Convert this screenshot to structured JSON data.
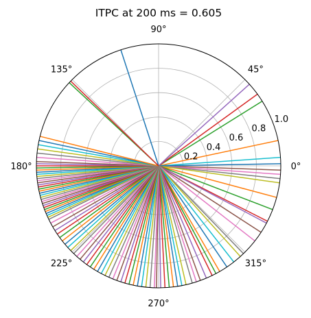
{
  "chart_data": {
    "type": "polar-line",
    "title": "ITPC at 200 ms = 0.605",
    "angle_ticks": [
      "0°",
      "45°",
      "90°",
      "135°",
      "180°",
      "225°",
      "270°",
      "315°"
    ],
    "angle_tick_degrees": [
      0,
      45,
      90,
      135,
      180,
      225,
      270,
      315
    ],
    "radial_ticks": [
      0.2,
      0.4,
      0.6,
      0.8,
      1.0
    ],
    "radial_tick_labels": [
      "0.2",
      "0.4",
      "0.6",
      "0.8",
      "1.0"
    ],
    "rlim": [
      0,
      1.0
    ],
    "grid": true,
    "legend": false,
    "colors": [
      "#1f77b4",
      "#ff7f0e",
      "#2ca02c",
      "#d62728",
      "#9467bd",
      "#8c564b",
      "#e377c2",
      "#7f7f7f",
      "#bcbd22",
      "#17becf"
    ],
    "trial_phase_angles_deg": [
      108,
      12,
      32,
      36,
      42,
      358,
      356,
      354,
      352,
      4,
      1,
      345,
      339,
      333,
      332,
      327,
      322,
      314,
      312,
      308,
      304,
      300,
      298,
      296,
      293,
      290,
      288,
      286,
      283,
      281,
      279,
      277,
      275,
      273,
      271,
      269,
      268,
      266,
      264,
      262,
      260,
      258,
      256,
      254,
      252,
      250,
      248,
      246,
      244,
      242,
      240,
      238,
      236,
      234,
      232,
      230,
      228,
      226,
      224,
      222,
      220,
      218,
      216,
      214,
      212,
      210,
      208,
      206,
      205,
      204,
      203,
      202,
      201,
      200,
      199,
      198,
      197,
      196,
      195,
      194,
      193,
      192,
      191,
      190,
      189,
      188,
      187,
      186,
      185,
      184,
      183,
      182,
      181,
      180,
      179,
      178,
      176,
      174,
      172,
      170,
      168,
      166,
      137,
      136
    ]
  }
}
